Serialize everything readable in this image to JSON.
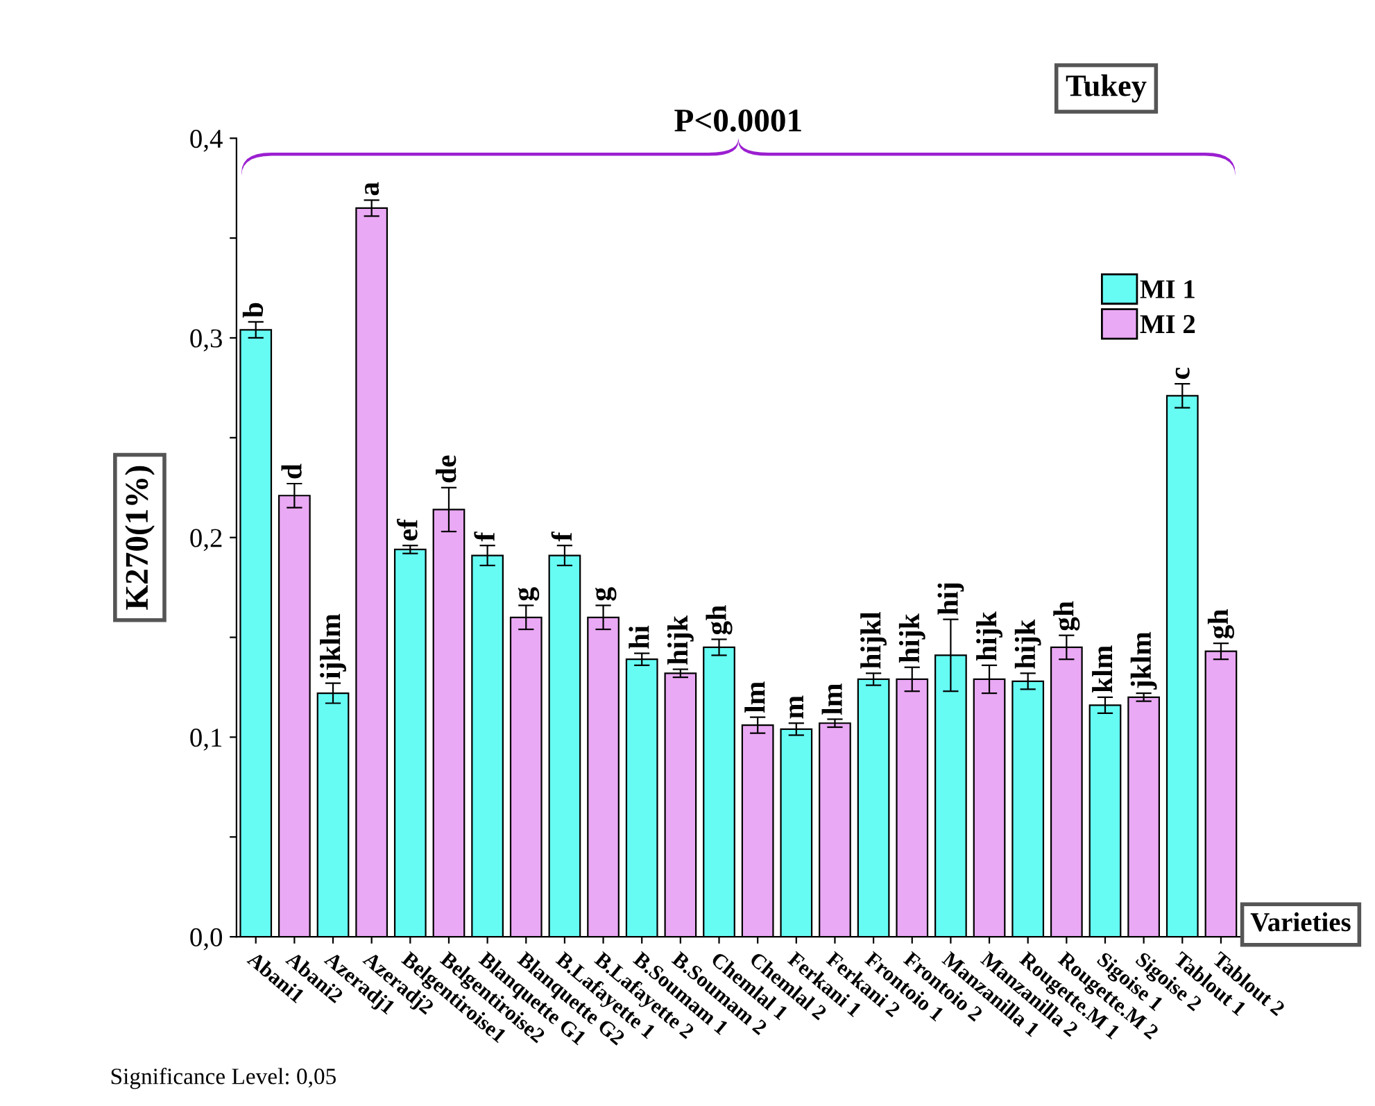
{
  "chart_data": {
    "type": "bar",
    "title": "P<0.0001",
    "ylabel": "K270(1%)",
    "xlabel": "Varieties",
    "categories": [
      "Abani1",
      "Abani2",
      "Azeradj1",
      "Azeradj2",
      "Belgentiroise1",
      "Belgentiroise2",
      "Blanquette G1",
      "Blanquette G2",
      "B.Lafayette 1",
      "B.Lafayette 2",
      "B.Soumam 1",
      "B.Soumam 2",
      "Chemlal 1",
      "Chemlal 2",
      "Ferkani 1",
      "Ferkani 2",
      "Frontoio 1",
      "Frontoio 2",
      "Manzanilla 1",
      "Manzanilla 2",
      "Rougette.M 1",
      "Rougette.M 2",
      "Sigoise 1",
      "Sigoise 2",
      "Tablout 1",
      "Tablout 2"
    ],
    "series": [
      {
        "name": "MI 1",
        "color": "#66fcf4",
        "values": [
          0.304,
          null,
          0.122,
          null,
          0.194,
          null,
          0.191,
          null,
          0.191,
          null,
          0.139,
          null,
          0.145,
          null,
          0.104,
          null,
          0.129,
          null,
          0.141,
          null,
          0.128,
          null,
          0.116,
          null,
          0.271,
          null
        ],
        "errors": [
          0.004,
          null,
          0.005,
          null,
          0.002,
          null,
          0.005,
          null,
          0.005,
          null,
          0.003,
          null,
          0.004,
          null,
          0.003,
          null,
          0.003,
          null,
          0.018,
          null,
          0.004,
          null,
          0.004,
          null,
          0.006,
          null
        ],
        "value_labels": [
          "b",
          null,
          "ijklm",
          null,
          "ef",
          null,
          "f",
          null,
          "f",
          null,
          "hi",
          null,
          "gh",
          null,
          "m",
          null,
          "hijkl",
          null,
          "hij",
          null,
          "hijk",
          null,
          "klm",
          null,
          "c",
          null
        ]
      },
      {
        "name": "MI 2",
        "color": "#eaa9f4",
        "values": [
          null,
          0.221,
          null,
          0.365,
          null,
          0.214,
          null,
          0.16,
          null,
          0.16,
          null,
          0.132,
          null,
          0.106,
          null,
          0.107,
          null,
          0.129,
          null,
          0.129,
          null,
          0.145,
          null,
          0.12,
          null,
          0.143
        ],
        "errors": [
          null,
          0.006,
          null,
          0.004,
          null,
          0.011,
          null,
          0.006,
          null,
          0.006,
          null,
          0.002,
          null,
          0.004,
          null,
          0.002,
          null,
          0.006,
          null,
          0.007,
          null,
          0.006,
          null,
          0.002,
          null,
          0.004
        ],
        "value_labels": [
          null,
          "d",
          null,
          "a",
          null,
          "de",
          null,
          "g",
          null,
          "g",
          null,
          "hijk",
          null,
          "lm",
          null,
          "lm",
          null,
          "hijk",
          null,
          "hijk",
          null,
          "gh",
          null,
          "jklm",
          null,
          "gh"
        ]
      }
    ],
    "ylim": [
      0,
      0.4
    ],
    "yticks": [
      {
        "value": 0,
        "label": "0,0"
      },
      {
        "value": 0.05,
        "label": null
      },
      {
        "value": 0.1,
        "label": "0,1"
      },
      {
        "value": 0.15,
        "label": null
      },
      {
        "value": 0.2,
        "label": "0,2"
      },
      {
        "value": 0.25,
        "label": null
      },
      {
        "value": 0.3,
        "label": "0,3"
      },
      {
        "value": 0.35,
        "label": null
      },
      {
        "value": 0.4,
        "label": "0,4"
      }
    ],
    "legend": "top right",
    "grid": false,
    "annotations": [
      "Tukey",
      "Significance Level: 0,05"
    ]
  }
}
